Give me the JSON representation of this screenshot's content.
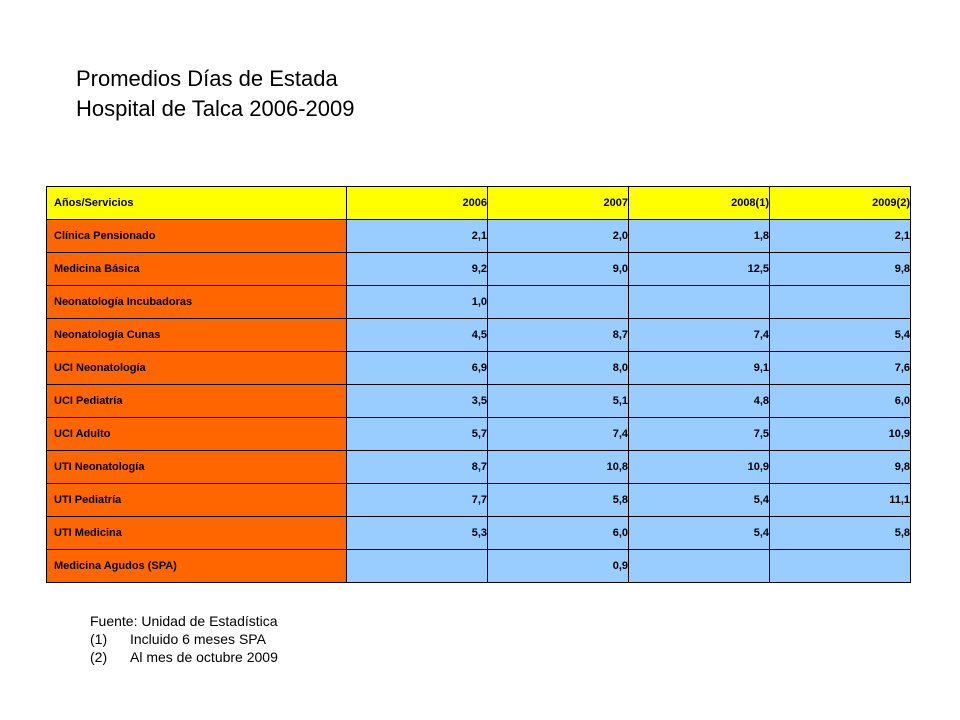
{
  "title": {
    "line1": "Promedios Días de Estada",
    "line2": "Hospital de Talca 2006-2009"
  },
  "table": {
    "headers": [
      "Años/Servicios",
      "2006",
      "2007",
      "2008(1)",
      "2009(2)"
    ],
    "rows": [
      {
        "service": "Clínica Pensionado",
        "values": [
          "2,1",
          "2,0",
          "1,8",
          "2,1"
        ]
      },
      {
        "service": "Medicina Básica",
        "values": [
          "9,2",
          "9,0",
          "12,5",
          "9,8"
        ]
      },
      {
        "service": "Neonatología Incubadoras",
        "values": [
          "1,0",
          "",
          "",
          ""
        ]
      },
      {
        "service": "Neonatología Cunas",
        "values": [
          "4,5",
          "8,7",
          "7,4",
          "5,4"
        ]
      },
      {
        "service": "UCI Neonatología",
        "values": [
          "6,9",
          "8,0",
          "9,1",
          "7,6"
        ]
      },
      {
        "service": "UCI Pediatría",
        "values": [
          "3,5",
          "5,1",
          "4,8",
          "6,0"
        ]
      },
      {
        "service": "UCI Adulto",
        "values": [
          "5,7",
          "7,4",
          "7,5",
          "10,9"
        ]
      },
      {
        "service": "UTI Neonatología",
        "values": [
          "8,7",
          "10,8",
          "10,9",
          "9,8"
        ]
      },
      {
        "service": "UTI Pediatría",
        "values": [
          "7,7",
          "5,8",
          "5,4",
          "11,1"
        ]
      },
      {
        "service": "UTI Medicina",
        "values": [
          "5,3",
          "6,0",
          "5,4",
          "5,8"
        ]
      },
      {
        "service": "Medicina Agudos (SPA)",
        "values": [
          "",
          "0,9",
          "",
          ""
        ]
      }
    ],
    "colors": {
      "header": "#ffff00",
      "service": "#ff6600",
      "value": "#99ccff"
    }
  },
  "notes": {
    "source": "Fuente: Unidad de Estadística",
    "items": [
      {
        "num": "(1)",
        "text": "Incluido 6 meses SPA"
      },
      {
        "num": "(2)",
        "text": "Al mes de octubre 2009"
      }
    ]
  }
}
